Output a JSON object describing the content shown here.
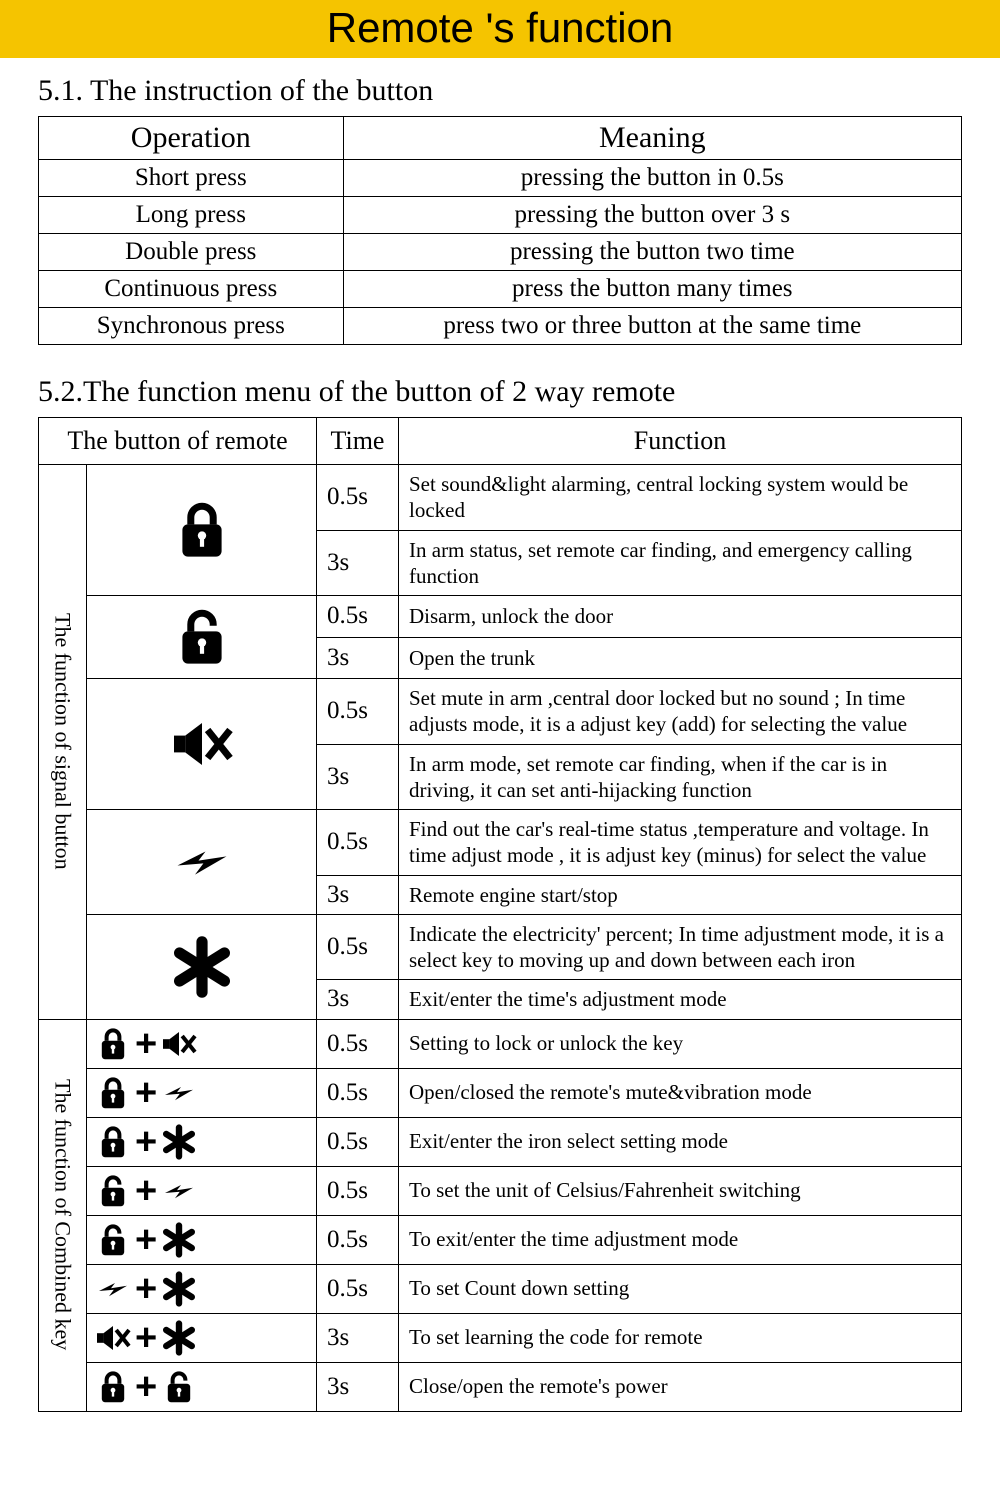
{
  "banner_title": "Remote 's function",
  "section1": {
    "heading": "5.1. The instruction of the button",
    "headers": [
      "Operation",
      "Meaning"
    ],
    "rows": [
      [
        "Short press",
        "pressing the button in 0.5s"
      ],
      [
        "Long press",
        "pressing the button over 3 s"
      ],
      [
        "Double press",
        "pressing the button two time"
      ],
      [
        "Continuous press",
        "press the button many times"
      ],
      [
        "Synchronous press",
        "press two or three button at the same time"
      ]
    ]
  },
  "section2": {
    "heading": "5.2.The function menu of the button of 2 way remote",
    "headers": [
      "The button of remote",
      "Time",
      "Function"
    ],
    "group_labels": {
      "signal": "The function of signal button",
      "combined": "The function of Combined key"
    },
    "signal_rows": [
      {
        "icon": "lock",
        "time": "0.5s",
        "func": "Set sound&light alarming, central locking system would be locked"
      },
      {
        "icon": "lock",
        "time": "3s",
        "func": "In arm status, set remote car finding, and emergency calling function"
      },
      {
        "icon": "unlock",
        "time": "0.5s",
        "func": "Disarm, unlock the door"
      },
      {
        "icon": "unlock",
        "time": "3s",
        "func": "Open the trunk"
      },
      {
        "icon": "mute",
        "time": "0.5s",
        "func": "Set mute in arm ,central door locked but no sound ; In time adjusts mode, it is a adjust key (add) for selecting the value"
      },
      {
        "icon": "mute",
        "time": "3s",
        "func": "In arm mode, set remote car finding,  when if the car is in driving, it can set anti-hijacking function"
      },
      {
        "icon": "bolt",
        "time": "0.5s",
        "func": "Find out the car's real-time status ,temperature and  voltage. In time adjust mode , it is adjust key (minus) for select the value"
      },
      {
        "icon": "bolt",
        "time": "3s",
        "func": " Remote engine start/stop"
      },
      {
        "icon": "star",
        "time": "0.5s",
        "func": "Indicate the electricity' percent; In time adjustment mode, it is a select key to moving up and down between each iron"
      },
      {
        "icon": "star",
        "time": "3s",
        "func": " Exit/enter the time's adjustment mode"
      }
    ],
    "combined_rows": [
      {
        "icons": [
          "lock",
          "mute"
        ],
        "time": "0.5s",
        "func": "Setting to lock or unlock the key"
      },
      {
        "icons": [
          "lock",
          "bolt"
        ],
        "time": "0.5s",
        "func": "Open/closed the remote's mute&vibration mode"
      },
      {
        "icons": [
          "lock",
          "star"
        ],
        "time": "0.5s",
        "func": "Exit/enter the iron select setting mode"
      },
      {
        "icons": [
          "unlock",
          "bolt"
        ],
        "time": "0.5s",
        "func": "To set the unit of Celsius/Fahrenheit  switching"
      },
      {
        "icons": [
          "unlock",
          "star"
        ],
        "time": "0.5s",
        "func": "To exit/enter the time adjustment mode"
      },
      {
        "icons": [
          "bolt",
          "star"
        ],
        "time": "0.5s",
        "func": "To set Count down setting"
      },
      {
        "icons": [
          "mute",
          "star"
        ],
        "time": "3s",
        "func": "To set learning the code for remote"
      },
      {
        "icons": [
          "lock",
          "unlock"
        ],
        "time": "3s",
        "func": "Close/open the remote's power"
      }
    ]
  },
  "colors": {
    "banner_bg": "#f5c400",
    "text": "#000000",
    "border": "#000000",
    "page_bg": "#ffffff"
  },
  "icon_sizes": {
    "large": 70,
    "medium": 46,
    "small": 40
  },
  "plus_symbol": "+"
}
